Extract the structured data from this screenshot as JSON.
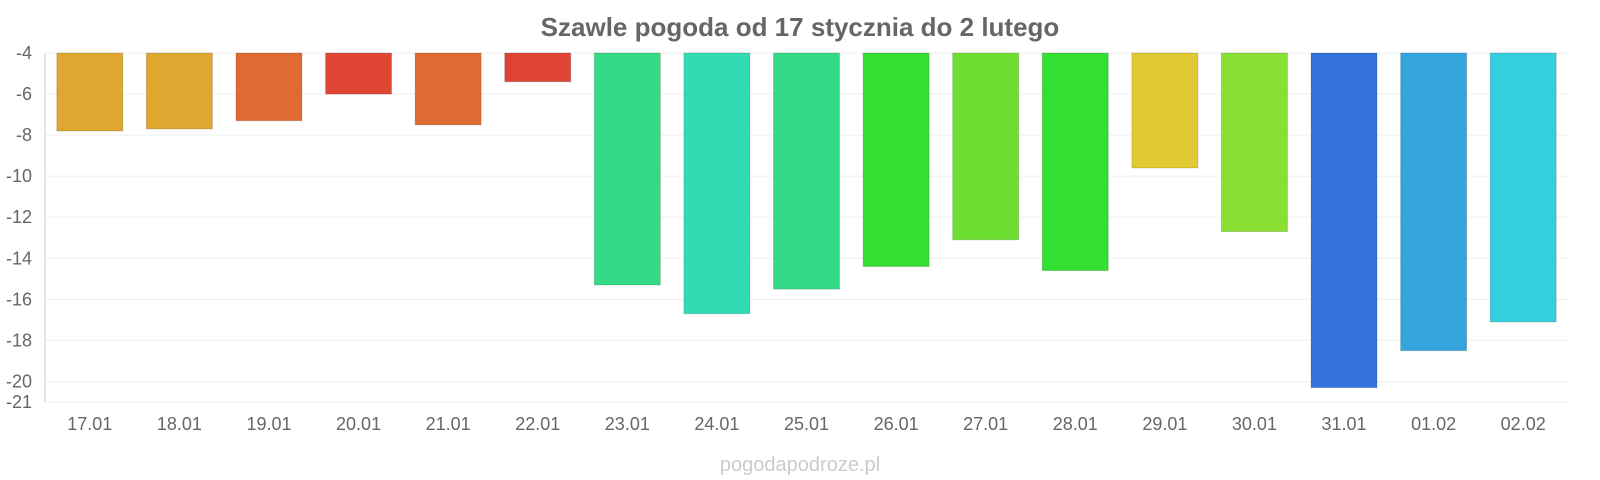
{
  "chart_data": {
    "type": "bar",
    "title": "Szawle pogoda od 17 stycznia do 2 lutego",
    "watermark": "pogodapodroze.pl",
    "categories": [
      "17.01",
      "18.01",
      "19.01",
      "20.01",
      "21.01",
      "22.01",
      "23.01",
      "24.01",
      "25.01",
      "26.01",
      "27.01",
      "28.01",
      "29.01",
      "30.01",
      "31.01",
      "01.02",
      "02.02"
    ],
    "values": [
      -7.8,
      -7.7,
      -7.3,
      -6.0,
      -7.5,
      -5.4,
      -15.3,
      -16.7,
      -15.5,
      -14.4,
      -13.1,
      -14.6,
      -9.6,
      -12.7,
      -20.3,
      -18.5,
      -17.1
    ],
    "colors": [
      "#dfa630",
      "#dfa630",
      "#df6a33",
      "#df4633",
      "#df6a33",
      "#df4333",
      "#33db87",
      "#33dbb4",
      "#33db87",
      "#33df33",
      "#6ddf33",
      "#33df33",
      "#dfca33",
      "#8adf33",
      "#3372dc",
      "#33a5dc",
      "#33cfdc"
    ],
    "yticks": [
      -4,
      -6,
      -8,
      -10,
      -12,
      -14,
      -16,
      -18,
      -20,
      -21
    ],
    "ylim": [
      -4,
      -21
    ],
    "grid": true,
    "xlabel": "",
    "ylabel": ""
  }
}
